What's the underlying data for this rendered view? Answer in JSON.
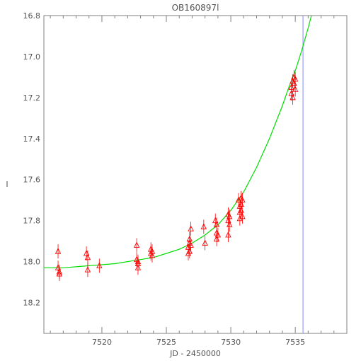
{
  "chart_data": {
    "type": "scatter",
    "title": "OB160897l",
    "xlabel": "JD - 2450000",
    "ylabel": "I",
    "xlim": [
      7515.5,
      7539.0
    ],
    "ylim": [
      18.35,
      16.8
    ],
    "y_inverted": true,
    "x_ticks": [
      7520,
      7525,
      7530,
      7535
    ],
    "x_tick_labels": [
      "7520",
      "7525",
      "7530",
      "7535"
    ],
    "y_ticks": [
      16.8,
      17.0,
      17.2,
      17.4,
      17.6,
      17.8,
      18.0,
      18.2
    ],
    "y_tick_labels": [
      "16.8",
      "17.0",
      "17.2",
      "17.4",
      "17.6",
      "17.8",
      "18.0",
      "18.2"
    ],
    "grid": false,
    "colors": {
      "points": "#ff0000",
      "model": "#00dd00",
      "marker_line": "#8888ff",
      "frame": "#808080"
    },
    "series": [
      {
        "marker": "triangle",
        "error_bars": true,
        "points": [
          {
            "x": 7516.6,
            "y": 17.95
          },
          {
            "x": 7516.6,
            "y": 18.03
          },
          {
            "x": 7516.7,
            "y": 18.05
          },
          {
            "x": 7516.7,
            "y": 18.06
          },
          {
            "x": 7518.8,
            "y": 17.96
          },
          {
            "x": 7518.9,
            "y": 17.98
          },
          {
            "x": 7518.9,
            "y": 18.04
          },
          {
            "x": 7519.8,
            "y": 18.02
          },
          {
            "x": 7522.7,
            "y": 17.92
          },
          {
            "x": 7522.7,
            "y": 17.99
          },
          {
            "x": 7522.8,
            "y": 18.0
          },
          {
            "x": 7522.8,
            "y": 18.01
          },
          {
            "x": 7522.8,
            "y": 18.03
          },
          {
            "x": 7523.8,
            "y": 17.94
          },
          {
            "x": 7523.8,
            "y": 17.96
          },
          {
            "x": 7523.9,
            "y": 17.95
          },
          {
            "x": 7523.9,
            "y": 17.97
          },
          {
            "x": 7526.7,
            "y": 17.93
          },
          {
            "x": 7526.7,
            "y": 17.96
          },
          {
            "x": 7526.8,
            "y": 17.89
          },
          {
            "x": 7526.8,
            "y": 17.91
          },
          {
            "x": 7526.8,
            "y": 17.95
          },
          {
            "x": 7526.9,
            "y": 17.84
          },
          {
            "x": 7526.9,
            "y": 17.92
          },
          {
            "x": 7527.9,
            "y": 17.83
          },
          {
            "x": 7528.0,
            "y": 17.91
          },
          {
            "x": 7528.8,
            "y": 17.8
          },
          {
            "x": 7528.9,
            "y": 17.82
          },
          {
            "x": 7528.9,
            "y": 17.86
          },
          {
            "x": 7528.9,
            "y": 17.89
          },
          {
            "x": 7529.0,
            "y": 17.87
          },
          {
            "x": 7529.8,
            "y": 17.77
          },
          {
            "x": 7529.8,
            "y": 17.8
          },
          {
            "x": 7529.8,
            "y": 17.87
          },
          {
            "x": 7529.9,
            "y": 17.78
          },
          {
            "x": 7529.9,
            "y": 17.82
          },
          {
            "x": 7530.6,
            "y": 17.7
          },
          {
            "x": 7530.7,
            "y": 17.73
          },
          {
            "x": 7530.7,
            "y": 17.76
          },
          {
            "x": 7530.7,
            "y": 17.79
          },
          {
            "x": 7530.8,
            "y": 17.69
          },
          {
            "x": 7530.8,
            "y": 17.72
          },
          {
            "x": 7530.8,
            "y": 17.75
          },
          {
            "x": 7530.9,
            "y": 17.7
          },
          {
            "x": 7530.9,
            "y": 17.78
          },
          {
            "x": 7534.7,
            "y": 17.15
          },
          {
            "x": 7534.7,
            "y": 17.18
          },
          {
            "x": 7534.8,
            "y": 17.2
          },
          {
            "x": 7534.8,
            "y": 17.12
          },
          {
            "x": 7534.9,
            "y": 17.1
          },
          {
            "x": 7534.9,
            "y": 17.13
          },
          {
            "x": 7535.0,
            "y": 17.11
          },
          {
            "x": 7535.0,
            "y": 17.16
          }
        ]
      },
      {
        "style": "line",
        "points": [
          {
            "x": 7515.5,
            "y": 18.03
          },
          {
            "x": 7517.0,
            "y": 18.03
          },
          {
            "x": 7519.0,
            "y": 18.02
          },
          {
            "x": 7521.0,
            "y": 18.01
          },
          {
            "x": 7523.0,
            "y": 17.99
          },
          {
            "x": 7524.0,
            "y": 17.98
          },
          {
            "x": 7525.0,
            "y": 17.96
          },
          {
            "x": 7526.0,
            "y": 17.94
          },
          {
            "x": 7527.0,
            "y": 17.91
          },
          {
            "x": 7528.0,
            "y": 17.87
          },
          {
            "x": 7529.0,
            "y": 17.82
          },
          {
            "x": 7530.0,
            "y": 17.75
          },
          {
            "x": 7531.0,
            "y": 17.66
          },
          {
            "x": 7532.0,
            "y": 17.54
          },
          {
            "x": 7533.0,
            "y": 17.4
          },
          {
            "x": 7534.0,
            "y": 17.24
          },
          {
            "x": 7534.5,
            "y": 17.15
          },
          {
            "x": 7535.0,
            "y": 17.07
          },
          {
            "x": 7535.5,
            "y": 16.97
          },
          {
            "x": 7536.0,
            "y": 16.86
          },
          {
            "x": 7536.25,
            "y": 16.8
          }
        ]
      }
    ],
    "vertical_line": {
      "x": 7535.6
    }
  }
}
